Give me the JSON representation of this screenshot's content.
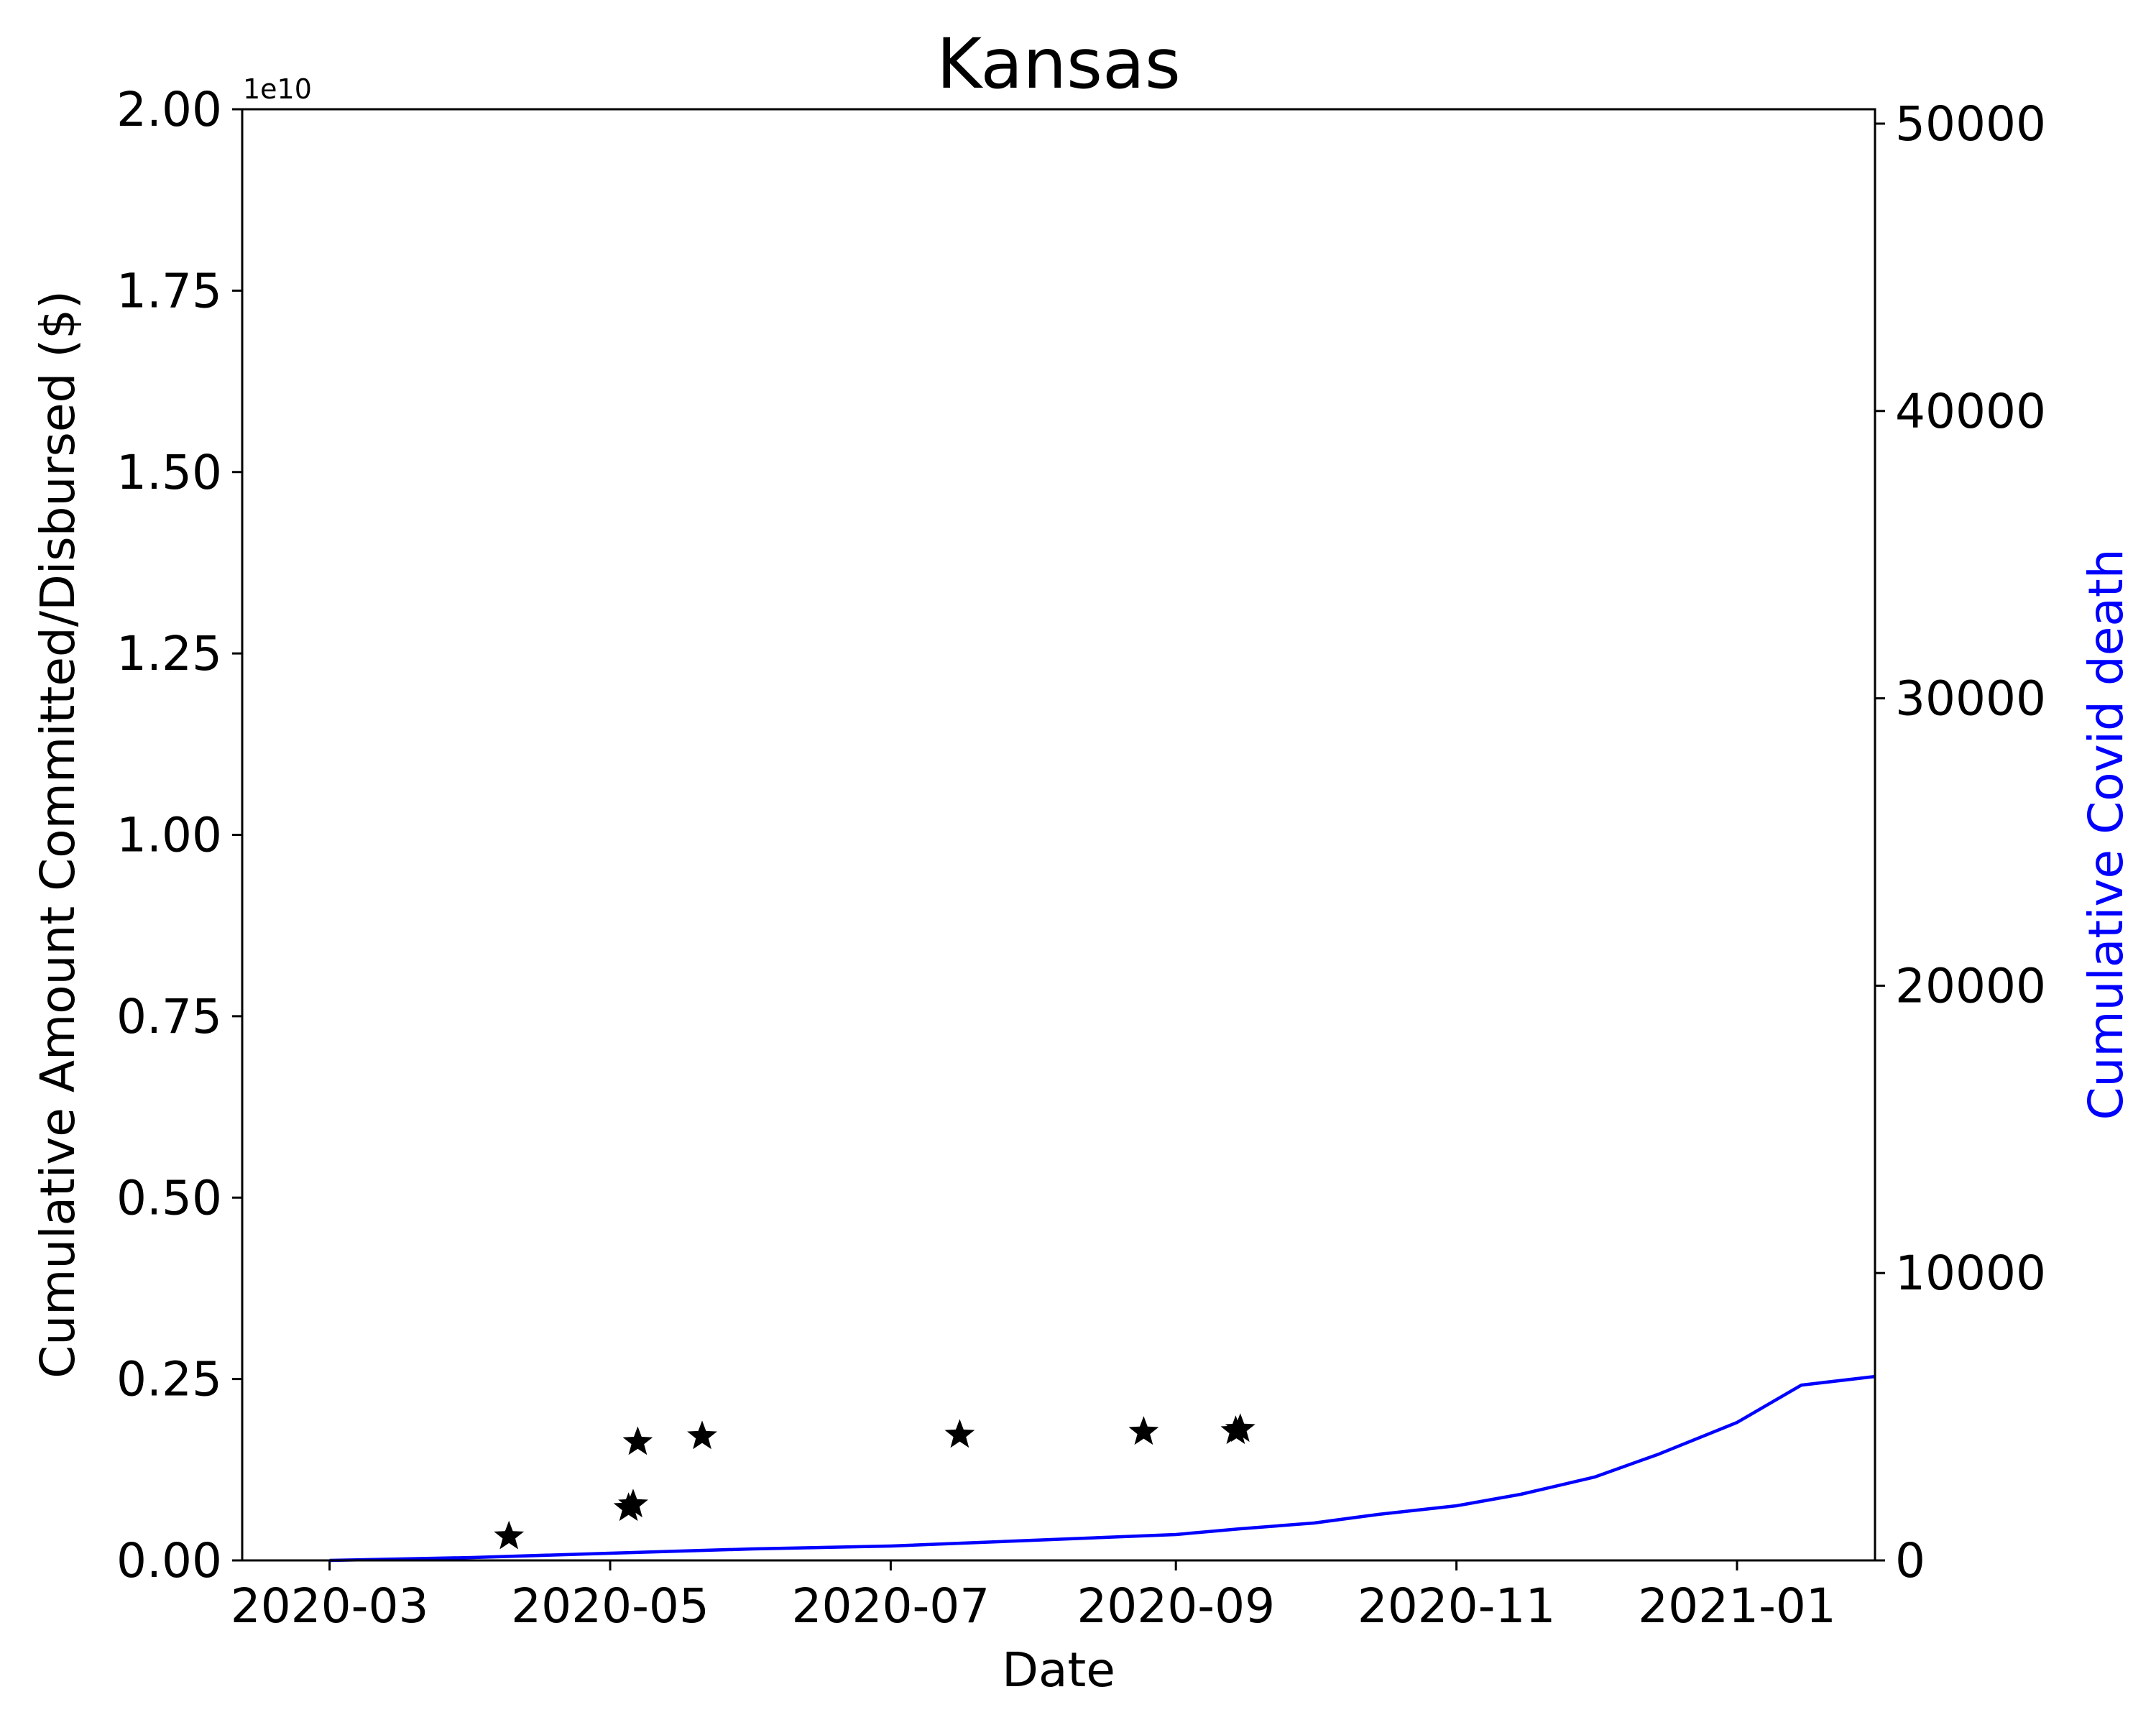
{
  "chart_data": {
    "type": "line",
    "title": "Kansas",
    "xlabel": "Date",
    "ylabel": "Cumulative Amount Committed/Disbursed ($)",
    "y2label": "Cumulative Covid death",
    "y_offset_label": "1e10",
    "xlim": [
      "2020-02-11",
      "2021-01-31"
    ],
    "ylim": [
      0,
      2.0
    ],
    "y2lim": [
      0,
      50500
    ],
    "x_ticks": [
      "2020-03",
      "2020-05",
      "2020-07",
      "2020-09",
      "2020-11",
      "2021-01"
    ],
    "y_ticks": [
      "0.00",
      "0.25",
      "0.50",
      "0.75",
      "1.00",
      "1.25",
      "1.50",
      "1.75",
      "2.00"
    ],
    "y2_ticks": [
      "0",
      "10000",
      "20000",
      "30000",
      "40000",
      "50000"
    ],
    "grid": false,
    "series": [
      {
        "axis": "left",
        "marker": "star",
        "color": "#000000",
        "points": [
          {
            "x": "2020-04-09",
            "y": 0.033
          },
          {
            "x": "2020-05-05",
            "y": 0.072
          },
          {
            "x": "2020-05-06",
            "y": 0.077
          },
          {
            "x": "2020-05-07",
            "y": 0.163
          },
          {
            "x": "2020-05-21",
            "y": 0.171
          },
          {
            "x": "2020-07-16",
            "y": 0.173
          },
          {
            "x": "2020-08-25",
            "y": 0.177
          },
          {
            "x": "2020-09-14",
            "y": 0.178
          },
          {
            "x": "2020-09-15",
            "y": 0.181
          }
        ]
      },
      {
        "axis": "right",
        "marker": "none",
        "color": "#0000ff",
        "points": [
          {
            "x": "2020-03-01",
            "y": 0
          },
          {
            "x": "2020-04-01",
            "y": 100
          },
          {
            "x": "2020-05-01",
            "y": 250
          },
          {
            "x": "2020-06-01",
            "y": 400
          },
          {
            "x": "2020-07-01",
            "y": 500
          },
          {
            "x": "2020-08-01",
            "y": 700
          },
          {
            "x": "2020-09-01",
            "y": 900
          },
          {
            "x": "2020-09-15",
            "y": 1100
          },
          {
            "x": "2020-10-01",
            "y": 1300
          },
          {
            "x": "2020-10-15",
            "y": 1600
          },
          {
            "x": "2020-11-01",
            "y": 1900
          },
          {
            "x": "2020-11-15",
            "y": 2300
          },
          {
            "x": "2020-12-01",
            "y": 2900
          },
          {
            "x": "2020-12-15",
            "y": 3700
          },
          {
            "x": "2021-01-01",
            "y": 4800
          },
          {
            "x": "2021-01-15",
            "y": 6100
          },
          {
            "x": "2021-01-31",
            "y": 6400
          }
        ]
      }
    ]
  }
}
